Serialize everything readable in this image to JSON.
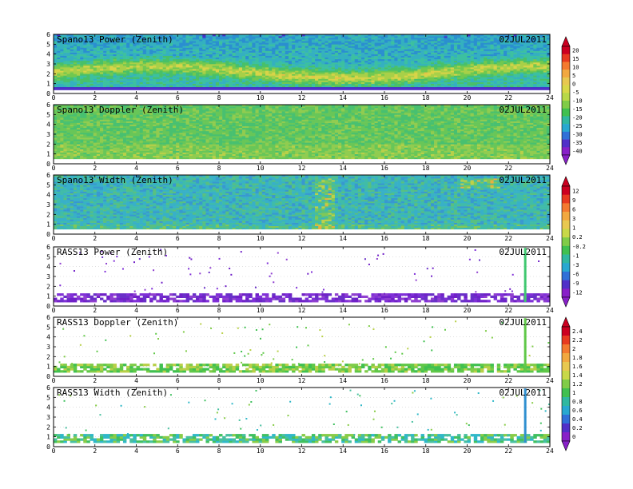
{
  "chart_data": {
    "type": "heatmap",
    "panels": [
      {
        "title": "Spano13 Power (Zenith)",
        "date": "02JUL2011",
        "style": "power"
      },
      {
        "title": "Spano13 Doppler (Zenith)",
        "date": "02JUL2011",
        "style": "doppler"
      },
      {
        "title": "Spano13 Width (Zenith)",
        "date": "02JUL2011",
        "style": "width"
      },
      {
        "title": "RASS13 Power (Zenith)",
        "date": "02JUL2011",
        "style": "rass_power"
      },
      {
        "title": "RASS13 Doppler (Zenith)",
        "date": "02JUL2011",
        "style": "rass_doppler"
      },
      {
        "title": "RASS13 Width (Zenith)",
        "date": "02JUL2011",
        "style": "rass_width"
      }
    ],
    "x_ticks": [
      "0",
      "2",
      "4",
      "6",
      "8",
      "10",
      "12",
      "14",
      "16",
      "18",
      "20",
      "22",
      "24"
    ],
    "y_ticks": [
      "0",
      "1",
      "2",
      "3",
      "4",
      "5",
      "6"
    ],
    "xlim": [
      0,
      24
    ],
    "ylim": [
      0,
      6
    ],
    "colorbars": [
      {
        "labels": [
          "20",
          "15",
          "10",
          "5",
          "0",
          "-5",
          "-10",
          "-15",
          "-20",
          "-25",
          "-30",
          "-35",
          "-40"
        ],
        "colors": [
          "#cc0020",
          "#e83a20",
          "#f47a30",
          "#f2a840",
          "#e8c850",
          "#d8d848",
          "#b8d848",
          "#80cc48",
          "#40c050",
          "#30b8a0",
          "#28a8d0",
          "#3070d8",
          "#5030c8",
          "#8820c8"
        ]
      },
      {
        "labels": [
          "12",
          "9",
          "6",
          "3",
          "1",
          "0.2",
          "-0.2",
          "-1",
          "-3",
          "-6",
          "-9",
          "-12"
        ],
        "colors": [
          "#cc0020",
          "#e83a20",
          "#f47a30",
          "#f2a840",
          "#e8c850",
          "#c8d848",
          "#80cc48",
          "#40c050",
          "#30b8a0",
          "#28a8d0",
          "#3070d8",
          "#5030c8",
          "#8820c8"
        ]
      },
      {
        "labels": [
          "2.4",
          "2.2",
          "2",
          "1.8",
          "1.6",
          "1.4",
          "1.2",
          "1",
          "0.8",
          "0.6",
          "0.4",
          "0.2",
          "0"
        ],
        "colors": [
          "#cc0020",
          "#e83a20",
          "#f47a30",
          "#f2a840",
          "#e8c850",
          "#c8d848",
          "#80cc48",
          "#40c050",
          "#30b8a0",
          "#28a8d0",
          "#3070d8",
          "#5030c8",
          "#8820c8"
        ]
      }
    ]
  }
}
